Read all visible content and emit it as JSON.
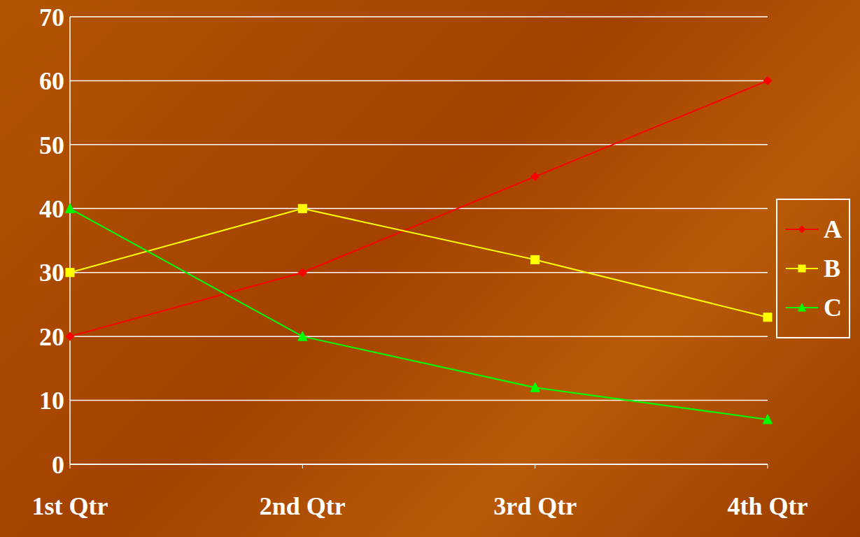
{
  "chart_data": {
    "type": "line",
    "categories": [
      "1st Qtr",
      "2nd Qtr",
      "3rd Qtr",
      "4th Qtr"
    ],
    "series": [
      {
        "name": "A",
        "color": "#ff0000",
        "marker": "diamond",
        "values": [
          20,
          30,
          45,
          60
        ]
      },
      {
        "name": "B",
        "color": "#ffff00",
        "marker": "square",
        "values": [
          30,
          40,
          32,
          23
        ]
      },
      {
        "name": "C",
        "color": "#00ff00",
        "marker": "triangle",
        "values": [
          40,
          20,
          12,
          7
        ]
      }
    ],
    "ylim": [
      0,
      70
    ],
    "yticks": [
      0,
      10,
      20,
      30,
      40,
      50,
      60,
      70
    ],
    "grid": true,
    "legend": "right"
  }
}
